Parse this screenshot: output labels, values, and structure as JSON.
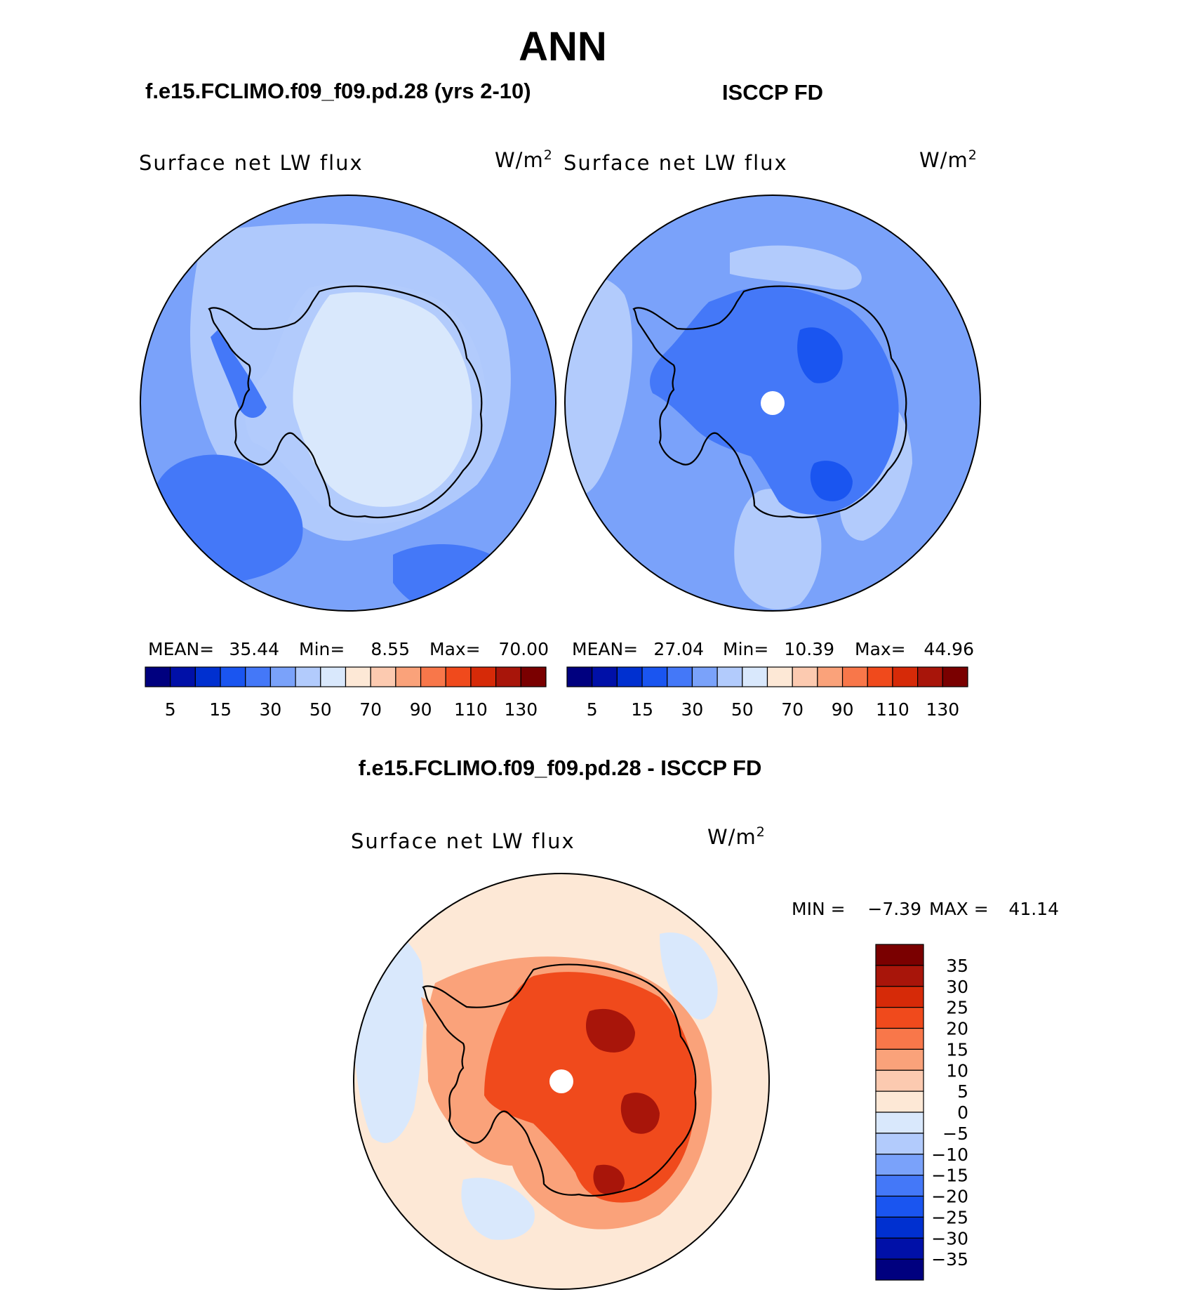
{
  "figure": {
    "season": "ANN",
    "colors": {
      "abs_scale": [
        "#00007f",
        "#0010a8",
        "#0030d0",
        "#1a55f0",
        "#4478f8",
        "#7aa2fa",
        "#b2cbfc",
        "#d9e8fc",
        "#fde8d6",
        "#fccab0",
        "#faa27a",
        "#f8774a",
        "#f04a1c",
        "#d62a08",
        "#a8150a",
        "#7a0000"
      ],
      "diff_scale": [
        "#00007f",
        "#0010a8",
        "#0030d0",
        "#1a55f0",
        "#4478f8",
        "#7aa2fa",
        "#b2cbfc",
        "#d9e8fc",
        "#fde8d6",
        "#fccab0",
        "#faa27a",
        "#f8774a",
        "#f04a1c",
        "#d62a08",
        "#a8150a",
        "#7a0000"
      ],
      "coast": "#000000"
    }
  },
  "chart_data": [
    {
      "type": "heatmap",
      "title": "f.e15.FCLIMO.f09_f09.pd.28 (yrs 2-10)",
      "variable": "Surface net LW flux",
      "units_base": "W/m",
      "units_exp": "2",
      "projection": "south polar stereographic",
      "stats": {
        "mean_label": "MEAN=",
        "mean": "35.44",
        "min_label": "Min=",
        "min": "8.55",
        "max_label": "Max=",
        "max": "70.00"
      },
      "colorbar_ticks": [
        "5",
        "15",
        "30",
        "50",
        "70",
        "90",
        "110",
        "130"
      ],
      "colorbar_levels": [
        5,
        10,
        15,
        20,
        30,
        40,
        50,
        60,
        70,
        80,
        90,
        100,
        110,
        120,
        130
      ],
      "fill_levels": {
        "ocean": 30,
        "ocean_low": 20,
        "coast_ring": 40,
        "interior": 50
      }
    },
    {
      "type": "heatmap",
      "title": "ISCCP FD",
      "variable": "Surface net LW flux",
      "units_base": "W/m",
      "units_exp": "2",
      "projection": "south polar stereographic",
      "stats": {
        "mean_label": "MEAN=",
        "mean": "27.04",
        "min_label": "Min=",
        "min": "10.39",
        "max_label": "Max=",
        "max": "44.96"
      },
      "colorbar_ticks": [
        "5",
        "15",
        "30",
        "50",
        "70",
        "90",
        "110",
        "130"
      ],
      "colorbar_levels": [
        5,
        10,
        15,
        20,
        30,
        40,
        50,
        60,
        70,
        80,
        90,
        100,
        110,
        120,
        130
      ],
      "fill_levels": {
        "ocean": 30,
        "ocean_low": 40,
        "interior": 20,
        "interior_low": 15
      },
      "missing_pole": true
    },
    {
      "type": "heatmap",
      "title": "f.e15.FCLIMO.f09_f09.pd.28 - ISCCP FD",
      "variable": "Surface net LW flux",
      "units_base": "W/m",
      "units_exp": "2",
      "projection": "south polar stereographic",
      "stats": {
        "min_label": "MIN =",
        "min": "−7.39",
        "max_label": "MAX =",
        "max": "41.14"
      },
      "colorbar_ticks": [
        "35",
        "30",
        "25",
        "20",
        "15",
        "10",
        "5",
        "0",
        "−5",
        "−10",
        "−15",
        "−20",
        "−25",
        "−30",
        "−35"
      ],
      "fill_levels": {
        "ocean": 0,
        "ocean_neg": -5,
        "coast_ring": 10,
        "interior": 20,
        "interior_high": 30
      },
      "missing_pole": true
    }
  ]
}
